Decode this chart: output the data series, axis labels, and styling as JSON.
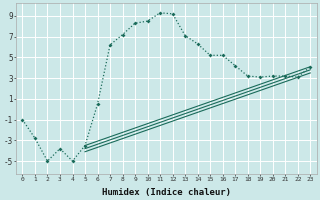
{
  "xlabel": "Humidex (Indice chaleur)",
  "ylabel": "",
  "background_color": "#cce8e8",
  "grid_color": "#ffffff",
  "line_color": "#1a6b5a",
  "xlim": [
    -0.5,
    23.5
  ],
  "ylim": [
    -6.2,
    10.2
  ],
  "yticks": [
    -5,
    -3,
    -1,
    1,
    3,
    5,
    7,
    9
  ],
  "xticks": [
    0,
    1,
    2,
    3,
    4,
    5,
    6,
    7,
    8,
    9,
    10,
    11,
    12,
    13,
    14,
    15,
    16,
    17,
    18,
    19,
    20,
    21,
    22,
    23
  ],
  "curve1_x": [
    0,
    1,
    2,
    3,
    4,
    5,
    6,
    7,
    8,
    9,
    10,
    11,
    12,
    13,
    14,
    15,
    16,
    17,
    18,
    19,
    20,
    21,
    22,
    23
  ],
  "curve1_y": [
    -1,
    -2.8,
    -5,
    -3.8,
    -5,
    -3.5,
    0.5,
    6.2,
    7.2,
    8.3,
    8.5,
    9.3,
    9.2,
    7.1,
    6.3,
    5.2,
    5.2,
    4.2,
    3.2,
    3.1,
    3.2,
    3.2,
    3.1,
    4.1
  ],
  "line2_x": [
    5,
    23
  ],
  "line2_y": [
    -3.5,
    4.1
  ],
  "line3_x": [
    5,
    23
  ],
  "line3_y": [
    -3.8,
    3.8
  ],
  "line4_x": [
    5,
    23
  ],
  "line4_y": [
    -4.1,
    3.5
  ]
}
